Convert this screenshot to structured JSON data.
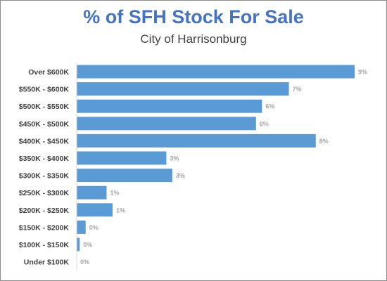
{
  "chart_data": {
    "type": "bar",
    "orientation": "horizontal",
    "title": "% of SFH Stock For Sale",
    "subtitle": "City of Harrisonburg",
    "categories": [
      "Over $600K",
      "$550K - $600K",
      "$500K - $550K",
      "$450K - $500K",
      "$400K - $450K",
      "$350K - $400K",
      "$300K - $350K",
      "$250K - $300K",
      "$200K - $250K",
      "$150K - $200K",
      "$100K - $150K",
      "Under $100K"
    ],
    "values": [
      9.3,
      7.1,
      6.2,
      6.0,
      8.0,
      3.0,
      3.2,
      1.0,
      1.2,
      0.3,
      0.1,
      0.0
    ],
    "data_labels": [
      "9%",
      "7%",
      "6%",
      "6%",
      "8%",
      "3%",
      "3%",
      "1%",
      "1%",
      "0%",
      "0%",
      "0%"
    ],
    "xlim": [
      0,
      10
    ],
    "grid": false,
    "legend": "none",
    "colors": {
      "bar": "#5b9bd5",
      "title": "#4472c4",
      "value_label": "#a6a6a6",
      "category_label": "#404040",
      "axis": "#d9d9d9"
    }
  }
}
